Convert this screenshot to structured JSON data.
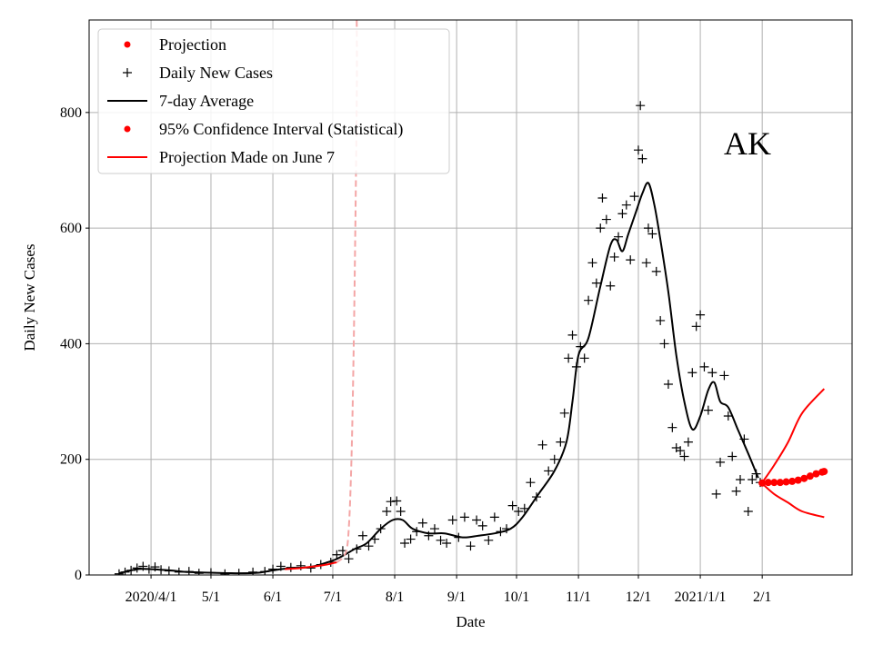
{
  "chart_data": {
    "type": "line",
    "state_label": "AK",
    "xlabel": "Date",
    "ylabel": "Daily New Cases",
    "ylim": [
      0,
      960
    ],
    "y_ticks": [
      0,
      200,
      400,
      600,
      800
    ],
    "x_ticks": [
      {
        "date": "2020-04-01",
        "label": "2020/4/1"
      },
      {
        "date": "2020-05-01",
        "label": "5/1"
      },
      {
        "date": "2020-06-01",
        "label": "6/1"
      },
      {
        "date": "2020-07-01",
        "label": "7/1"
      },
      {
        "date": "2020-08-01",
        "label": "8/1"
      },
      {
        "date": "2020-09-01",
        "label": "9/1"
      },
      {
        "date": "2020-10-01",
        "label": "10/1"
      },
      {
        "date": "2020-11-01",
        "label": "11/1"
      },
      {
        "date": "2020-12-01",
        "label": "12/1"
      },
      {
        "date": "2021-01-01",
        "label": "2021/1/1"
      },
      {
        "date": "2021-02-01",
        "label": "2/1"
      }
    ],
    "xlim": [
      "2020-03-01",
      "2021-03-18"
    ],
    "grid": true,
    "legend_position": "top-left",
    "legend": [
      {
        "label": "Projection",
        "marker": "dot",
        "color": "#ff0000"
      },
      {
        "label": "Daily New Cases",
        "marker": "plus",
        "color": "#000000"
      },
      {
        "label": "7-day Average",
        "marker": "line",
        "color": "#000000"
      },
      {
        "label": "95% Confidence Interval (Statistical)",
        "marker": "dot",
        "color": "#ff0000"
      },
      {
        "label": "Projection Made on June 7",
        "marker": "line",
        "color": "#ff0000"
      }
    ],
    "series": [
      {
        "name": "7-day Average",
        "color": "#000000",
        "points": [
          [
            "2020-03-16",
            3
          ],
          [
            "2020-03-25",
            10
          ],
          [
            "2020-04-01",
            10
          ],
          [
            "2020-04-10",
            8
          ],
          [
            "2020-04-20",
            5
          ],
          [
            "2020-05-01",
            4
          ],
          [
            "2020-05-15",
            3
          ],
          [
            "2020-05-25",
            4
          ],
          [
            "2020-06-01",
            8
          ],
          [
            "2020-06-10",
            12
          ],
          [
            "2020-06-20",
            14
          ],
          [
            "2020-07-01",
            25
          ],
          [
            "2020-07-07",
            35
          ],
          [
            "2020-07-12",
            45
          ],
          [
            "2020-07-18",
            55
          ],
          [
            "2020-07-25",
            80
          ],
          [
            "2020-07-31",
            95
          ],
          [
            "2020-08-05",
            95
          ],
          [
            "2020-08-10",
            80
          ],
          [
            "2020-08-18",
            72
          ],
          [
            "2020-08-26",
            72
          ],
          [
            "2020-09-04",
            65
          ],
          [
            "2020-09-12",
            68
          ],
          [
            "2020-09-20",
            72
          ],
          [
            "2020-09-28",
            80
          ],
          [
            "2020-10-04",
            100
          ],
          [
            "2020-10-12",
            140
          ],
          [
            "2020-10-20",
            180
          ],
          [
            "2020-10-26",
            230
          ],
          [
            "2020-10-29",
            300
          ],
          [
            "2020-11-01",
            380
          ],
          [
            "2020-11-06",
            410
          ],
          [
            "2020-11-12",
            500
          ],
          [
            "2020-11-17",
            570
          ],
          [
            "2020-11-20",
            580
          ],
          [
            "2020-11-23",
            560
          ],
          [
            "2020-11-26",
            590
          ],
          [
            "2020-11-30",
            630
          ],
          [
            "2020-12-03",
            660
          ],
          [
            "2020-12-06",
            678
          ],
          [
            "2020-12-09",
            640
          ],
          [
            "2020-12-12",
            580
          ],
          [
            "2020-12-16",
            490
          ],
          [
            "2020-12-20",
            380
          ],
          [
            "2020-12-24",
            300
          ],
          [
            "2020-12-28",
            252
          ],
          [
            "2021-01-01",
            275
          ],
          [
            "2021-01-05",
            320
          ],
          [
            "2021-01-08",
            333
          ],
          [
            "2021-01-11",
            300
          ],
          [
            "2021-01-15",
            290
          ],
          [
            "2021-01-20",
            250
          ],
          [
            "2021-01-25",
            210
          ],
          [
            "2021-01-30",
            168
          ]
        ]
      },
      {
        "name": "Projection Made on June 7",
        "color": "#ff0000",
        "style": "solid-then-dashed",
        "points": [
          [
            "2020-06-07",
            10
          ],
          [
            "2020-06-15",
            12
          ],
          [
            "2020-06-22",
            15
          ],
          [
            "2020-06-28",
            18
          ],
          [
            "2020-07-03",
            22
          ],
          [
            "2020-07-06",
            30
          ],
          [
            "2020-07-08",
            45
          ],
          [
            "2020-07-09",
            80
          ],
          [
            "2020-07-10",
            160
          ],
          [
            "2020-07-11",
            300
          ],
          [
            "2020-07-12",
            520
          ],
          [
            "2020-07-13",
            820
          ],
          [
            "2020-07-13",
            960
          ]
        ]
      },
      {
        "name": "95% Confidence Interval (Statistical)",
        "color": "#ff0000",
        "points": [
          [
            "2021-02-01",
            160
          ],
          [
            "2021-02-07",
            190
          ],
          [
            "2021-02-14",
            230
          ],
          [
            "2021-02-21",
            280
          ],
          [
            "2021-03-04",
            322
          ]
        ]
      },
      {
        "name": "95% Confidence Interval (Statistical)",
        "color": "#ff0000",
        "points": [
          [
            "2021-02-01",
            158
          ],
          [
            "2021-02-07",
            140
          ],
          [
            "2021-02-14",
            125
          ],
          [
            "2021-02-21",
            110
          ],
          [
            "2021-03-04",
            100
          ]
        ]
      },
      {
        "name": "Projection",
        "color": "#ff0000",
        "points": [
          [
            "2021-02-01",
            159
          ],
          [
            "2021-02-04",
            160
          ],
          [
            "2021-02-07",
            160
          ],
          [
            "2021-02-10",
            160
          ],
          [
            "2021-02-13",
            161
          ],
          [
            "2021-02-16",
            162
          ],
          [
            "2021-02-19",
            164
          ],
          [
            "2021-02-22",
            167
          ],
          [
            "2021-02-25",
            171
          ],
          [
            "2021-02-28",
            175
          ],
          [
            "2021-03-03",
            178
          ],
          [
            "2021-03-04",
            179
          ]
        ]
      }
    ],
    "daily_new_cases": [
      [
        "2020-03-16",
        2
      ],
      [
        "2020-03-19",
        5
      ],
      [
        "2020-03-22",
        8
      ],
      [
        "2020-03-25",
        12
      ],
      [
        "2020-03-28",
        15
      ],
      [
        "2020-03-31",
        10
      ],
      [
        "2020-04-03",
        14
      ],
      [
        "2020-04-06",
        9
      ],
      [
        "2020-04-10",
        7
      ],
      [
        "2020-04-15",
        5
      ],
      [
        "2020-04-20",
        6
      ],
      [
        "2020-04-25",
        3
      ],
      [
        "2020-05-01",
        4
      ],
      [
        "2020-05-08",
        2
      ],
      [
        "2020-05-15",
        3
      ],
      [
        "2020-05-22",
        5
      ],
      [
        "2020-05-28",
        6
      ],
      [
        "2020-06-01",
        10
      ],
      [
        "2020-06-05",
        15
      ],
      [
        "2020-06-10",
        13
      ],
      [
        "2020-06-15",
        16
      ],
      [
        "2020-06-20",
        12
      ],
      [
        "2020-06-25",
        18
      ],
      [
        "2020-06-30",
        22
      ],
      [
        "2020-07-03",
        35
      ],
      [
        "2020-07-06",
        42
      ],
      [
        "2020-07-09",
        28
      ],
      [
        "2020-07-13",
        45
      ],
      [
        "2020-07-16",
        68
      ],
      [
        "2020-07-19",
        50
      ],
      [
        "2020-07-22",
        62
      ],
      [
        "2020-07-25",
        80
      ],
      [
        "2020-07-28",
        110
      ],
      [
        "2020-07-30",
        127
      ],
      [
        "2020-08-02",
        128
      ],
      [
        "2020-08-04",
        110
      ],
      [
        "2020-08-06",
        55
      ],
      [
        "2020-08-09",
        62
      ],
      [
        "2020-08-12",
        75
      ],
      [
        "2020-08-15",
        90
      ],
      [
        "2020-08-18",
        68
      ],
      [
        "2020-08-21",
        80
      ],
      [
        "2020-08-24",
        60
      ],
      [
        "2020-08-27",
        55
      ],
      [
        "2020-08-30",
        95
      ],
      [
        "2020-09-02",
        65
      ],
      [
        "2020-09-05",
        100
      ],
      [
        "2020-09-08",
        50
      ],
      [
        "2020-09-11",
        95
      ],
      [
        "2020-09-14",
        85
      ],
      [
        "2020-09-17",
        60
      ],
      [
        "2020-09-20",
        100
      ],
      [
        "2020-09-23",
        75
      ],
      [
        "2020-09-26",
        80
      ],
      [
        "2020-09-29",
        120
      ],
      [
        "2020-10-02",
        110
      ],
      [
        "2020-10-05",
        115
      ],
      [
        "2020-10-08",
        160
      ],
      [
        "2020-10-11",
        135
      ],
      [
        "2020-10-14",
        225
      ],
      [
        "2020-10-17",
        180
      ],
      [
        "2020-10-20",
        200
      ],
      [
        "2020-10-23",
        230
      ],
      [
        "2020-10-25",
        280
      ],
      [
        "2020-10-27",
        375
      ],
      [
        "2020-10-29",
        415
      ],
      [
        "2020-10-31",
        360
      ],
      [
        "2020-11-02",
        395
      ],
      [
        "2020-11-04",
        375
      ],
      [
        "2020-11-06",
        475
      ],
      [
        "2020-11-08",
        540
      ],
      [
        "2020-11-10",
        505
      ],
      [
        "2020-11-12",
        600
      ],
      [
        "2020-11-13",
        652
      ],
      [
        "2020-11-15",
        615
      ],
      [
        "2020-11-17",
        500
      ],
      [
        "2020-11-19",
        550
      ],
      [
        "2020-11-21",
        585
      ],
      [
        "2020-11-23",
        625
      ],
      [
        "2020-11-25",
        640
      ],
      [
        "2020-11-27",
        545
      ],
      [
        "2020-11-29",
        655
      ],
      [
        "2020-12-01",
        735
      ],
      [
        "2020-12-02",
        812
      ],
      [
        "2020-12-03",
        720
      ],
      [
        "2020-12-05",
        540
      ],
      [
        "2020-12-06",
        600
      ],
      [
        "2020-12-08",
        590
      ],
      [
        "2020-12-10",
        525
      ],
      [
        "2020-12-12",
        440
      ],
      [
        "2020-12-14",
        400
      ],
      [
        "2020-12-16",
        330
      ],
      [
        "2020-12-18",
        255
      ],
      [
        "2020-12-20",
        220
      ],
      [
        "2020-12-22",
        215
      ],
      [
        "2020-12-24",
        205
      ],
      [
        "2020-12-26",
        230
      ],
      [
        "2020-12-28",
        350
      ],
      [
        "2020-12-30",
        430
      ],
      [
        "2021-01-01",
        450
      ],
      [
        "2021-01-03",
        360
      ],
      [
        "2021-01-05",
        285
      ],
      [
        "2021-01-07",
        350
      ],
      [
        "2021-01-09",
        140
      ],
      [
        "2021-01-11",
        195
      ],
      [
        "2021-01-13",
        345
      ],
      [
        "2021-01-15",
        275
      ],
      [
        "2021-01-17",
        205
      ],
      [
        "2021-01-19",
        145
      ],
      [
        "2021-01-21",
        165
      ],
      [
        "2021-01-23",
        235
      ],
      [
        "2021-01-25",
        110
      ],
      [
        "2021-01-27",
        165
      ],
      [
        "2021-01-29",
        175
      ],
      [
        "2021-01-31",
        160
      ]
    ]
  }
}
